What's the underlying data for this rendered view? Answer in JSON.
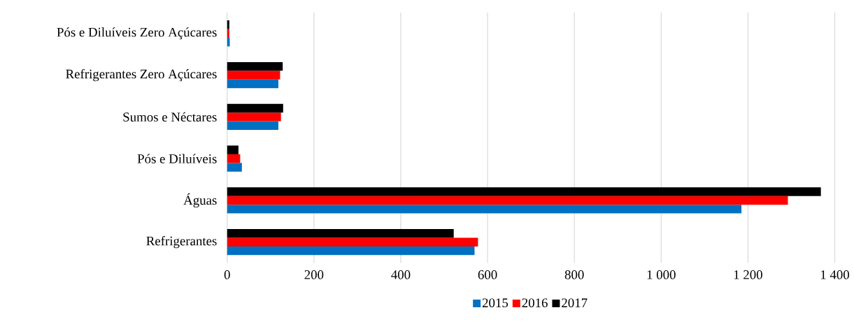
{
  "chart_data": {
    "type": "bar",
    "orientation": "horizontal",
    "categories": [
      "Pós e Diluíveis Zero Açúcares",
      "Refrigerantes Zero Açúcares",
      "Sumos e Néctares",
      "Pós e Diluíveis",
      "Águas",
      "Refrigerantes"
    ],
    "series": [
      {
        "name": "2015",
        "color": "#0070c0",
        "values": [
          6,
          118,
          118,
          34,
          1185,
          570
        ]
      },
      {
        "name": "2016",
        "color": "#ff0000",
        "values": [
          5,
          122,
          124,
          30,
          1292,
          578
        ]
      },
      {
        "name": "2017",
        "color": "#000000",
        "values": [
          5,
          128,
          129,
          26,
          1368,
          522
        ]
      }
    ],
    "xlim": [
      0,
      1400
    ],
    "xticks": [
      0,
      200,
      400,
      600,
      800,
      {
        "value": 1000,
        "label": "1 000"
      },
      {
        "value": 1200,
        "label": "1 200"
      },
      {
        "value": 1400,
        "label": "1 400"
      }
    ],
    "grid": "x",
    "legend": "bottom"
  }
}
